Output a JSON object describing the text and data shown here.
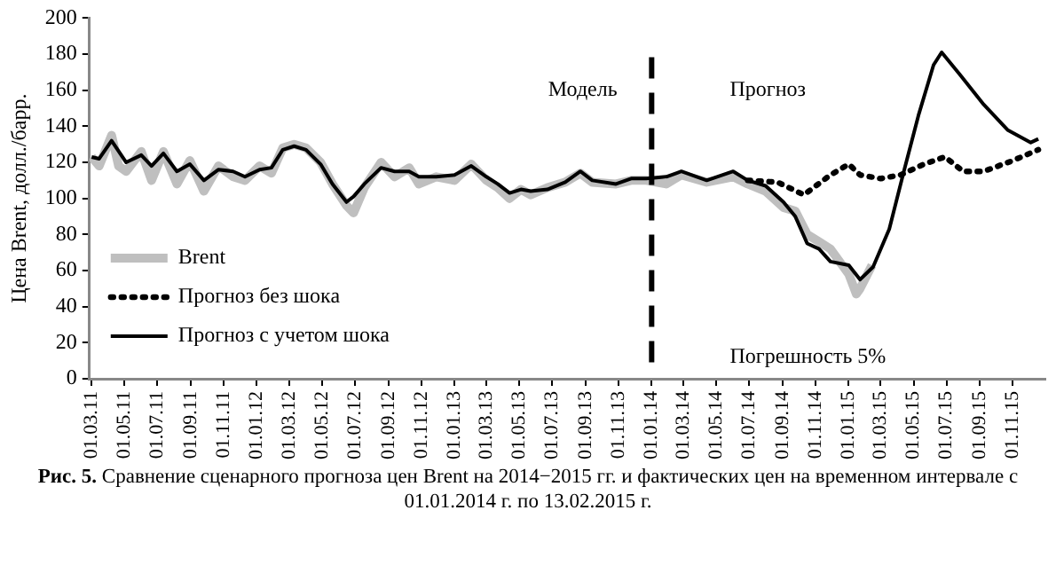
{
  "chart_data": {
    "type": "line",
    "ylabel": "Цена Brent, долл./барр.",
    "grid": false,
    "legend": "bottom left",
    "xlim": [
      "2011-02-25",
      "2015-12-31"
    ],
    "ylim": [
      0,
      200
    ],
    "yticks": [
      0,
      20,
      40,
      60,
      80,
      100,
      120,
      140,
      160,
      180,
      200
    ],
    "xticks": [
      {
        "value": "2011-03-01",
        "label": "01.03.11"
      },
      {
        "value": "2011-05-01",
        "label": "01.05.11"
      },
      {
        "value": "2011-07-01",
        "label": "01.07.11"
      },
      {
        "value": "2011-09-01",
        "label": "01.09.11"
      },
      {
        "value": "2011-11-01",
        "label": "01.11.11"
      },
      {
        "value": "2012-01-01",
        "label": "01.01.12"
      },
      {
        "value": "2012-03-01",
        "label": "01.03.12"
      },
      {
        "value": "2012-05-01",
        "label": "01.05.12"
      },
      {
        "value": "2012-07-01",
        "label": "01.07.12"
      },
      {
        "value": "2012-09-01",
        "label": "01.09.12"
      },
      {
        "value": "2012-11-01",
        "label": "01.11.12"
      },
      {
        "value": "2013-01-01",
        "label": "01.01.13"
      },
      {
        "value": "2013-03-01",
        "label": "01.03.13"
      },
      {
        "value": "2013-05-01",
        "label": "01.05.13"
      },
      {
        "value": "2013-07-01",
        "label": "01.07.13"
      },
      {
        "value": "2013-09-01",
        "label": "01.09.13"
      },
      {
        "value": "2013-11-01",
        "label": "01.11.13"
      },
      {
        "value": "2014-01-01",
        "label": "01.01.14"
      },
      {
        "value": "2014-03-01",
        "label": "01.03.14"
      },
      {
        "value": "2014-05-01",
        "label": "01.05.14"
      },
      {
        "value": "2014-07-01",
        "label": "01.07.14"
      },
      {
        "value": "2014-09-01",
        "label": "01.09.14"
      },
      {
        "value": "2014-11-01",
        "label": "01.11.14"
      },
      {
        "value": "2015-01-01",
        "label": "01.01.15"
      },
      {
        "value": "2015-03-01",
        "label": "01.03.15"
      },
      {
        "value": "2015-05-01",
        "label": "01.05.15"
      },
      {
        "value": "2015-07-01",
        "label": "01.07.15"
      },
      {
        "value": "2015-09-01",
        "label": "01.09.15"
      },
      {
        "value": "2015-11-01",
        "label": "01.11.15"
      }
    ],
    "series": [
      {
        "name": "Brent",
        "color": "#bfbfbf",
        "line_style": "solid",
        "x": [
          "2011-03-01",
          "2011-03-15",
          "2011-04-07",
          "2011-04-20",
          "2011-05-04",
          "2011-06-01",
          "2011-06-20",
          "2011-07-12",
          "2011-08-06",
          "2011-08-30",
          "2011-09-25",
          "2011-10-22",
          "2011-11-18",
          "2011-12-10",
          "2012-01-06",
          "2012-01-28",
          "2012-02-18",
          "2012-03-10",
          "2012-04-01",
          "2012-04-28",
          "2012-05-20",
          "2012-06-15",
          "2012-06-28",
          "2012-07-18",
          "2012-08-18",
          "2012-09-12",
          "2012-10-09",
          "2012-10-27",
          "2012-11-28",
          "2013-01-01",
          "2013-02-01",
          "2013-03-01",
          "2013-03-22",
          "2013-04-13",
          "2013-05-04",
          "2013-05-22",
          "2013-06-22",
          "2013-07-25",
          "2013-08-22",
          "2013-09-13",
          "2013-10-27",
          "2013-11-24",
          "2013-12-22",
          "2014-01-28",
          "2014-02-25",
          "2014-04-13",
          "2014-06-01",
          "2014-06-28",
          "2014-07-31",
          "2014-09-02",
          "2014-09-24",
          "2014-10-16",
          "2014-11-07",
          "2014-11-28",
          "2015-01-01",
          "2015-01-15",
          "2015-01-22",
          "2015-02-13"
        ],
        "values": [
          123,
          118,
          135,
          118,
          115,
          126,
          110,
          126,
          108,
          121,
          104,
          118,
          112,
          110,
          118,
          114,
          128,
          130,
          128,
          120,
          108,
          96,
          92,
          106,
          120,
          112,
          117,
          108,
          112,
          110,
          119,
          110,
          106,
          100,
          105,
          102,
          106,
          109,
          114,
          109,
          108,
          110,
          110,
          108,
          113,
          109,
          112,
          108,
          104,
          95,
          93,
          80,
          76,
          72,
          58,
          47,
          50,
          63
        ]
      },
      {
        "name": "Прогноз без шока",
        "color": "#000000",
        "line_style": "dotted",
        "x": [
          "2014-06-28",
          "2014-08-22",
          "2014-10-10",
          "2014-11-28",
          "2015-01-01",
          "2015-01-22",
          "2015-03-01",
          "2015-04-07",
          "2015-05-20",
          "2015-06-28",
          "2015-08-01",
          "2015-09-08",
          "2015-11-01",
          "2015-12-18"
        ],
        "values": [
          110,
          109,
          102,
          113,
          119,
          113,
          111,
          113,
          119,
          123,
          115,
          115,
          121,
          127
        ]
      },
      {
        "name": "Прогноз с учетом шока",
        "color": "#000000",
        "line_style": "solid",
        "x": [
          "2011-03-01",
          "2011-03-15",
          "2011-04-07",
          "2011-05-04",
          "2011-06-01",
          "2011-06-20",
          "2011-07-12",
          "2011-08-06",
          "2011-08-30",
          "2011-09-25",
          "2011-10-22",
          "2011-11-18",
          "2011-12-10",
          "2012-01-06",
          "2012-01-28",
          "2012-02-18",
          "2012-03-10",
          "2012-04-01",
          "2012-04-28",
          "2012-05-20",
          "2012-06-15",
          "2012-06-28",
          "2012-07-18",
          "2012-08-18",
          "2012-09-12",
          "2012-10-09",
          "2012-10-27",
          "2012-11-28",
          "2013-01-01",
          "2013-02-01",
          "2013-03-01",
          "2013-03-22",
          "2013-04-13",
          "2013-05-04",
          "2013-05-22",
          "2013-06-22",
          "2013-07-25",
          "2013-08-22",
          "2013-09-13",
          "2013-10-27",
          "2013-11-24",
          "2013-12-22",
          "2014-01-28",
          "2014-02-25",
          "2014-04-13",
          "2014-06-01",
          "2014-06-28",
          "2014-07-31",
          "2014-09-02",
          "2014-09-24",
          "2014-10-16",
          "2014-11-07",
          "2014-11-28",
          "2015-01-01",
          "2015-01-22",
          "2015-02-15",
          "2015-03-17",
          "2015-04-13",
          "2015-05-10",
          "2015-06-07",
          "2015-06-22",
          "2015-07-25",
          "2015-09-08",
          "2015-10-22",
          "2015-12-04",
          "2015-12-18"
        ],
        "values": [
          123,
          122,
          132,
          120,
          124,
          118,
          125,
          115,
          119,
          110,
          116,
          115,
          112,
          116,
          117,
          127,
          129,
          127,
          119,
          108,
          98,
          101,
          108,
          117,
          115,
          115,
          112,
          112,
          113,
          118,
          112,
          108,
          103,
          105,
          104,
          105,
          109,
          115,
          110,
          108,
          111,
          111,
          112,
          115,
          110,
          115,
          110,
          107,
          98,
          90,
          75,
          72,
          65,
          63,
          55,
          62,
          83,
          115,
          146,
          174,
          181,
          169,
          152,
          138,
          131,
          133
        ]
      }
    ],
    "ref_lines": [
      {
        "axis": "x",
        "value": "2014-01-01",
        "line_style": "dashed",
        "color": "#000000"
      }
    ],
    "annotations": [
      "Модель",
      "Прогноз",
      "Погрешность 5%",
      "Рис. 5. Сравнение сценарного прогноза цен Brent на 2014−2015 гг. и фактических цен на временном интервале с 01.01.2014 г. по 13.02.2015 г."
    ]
  }
}
